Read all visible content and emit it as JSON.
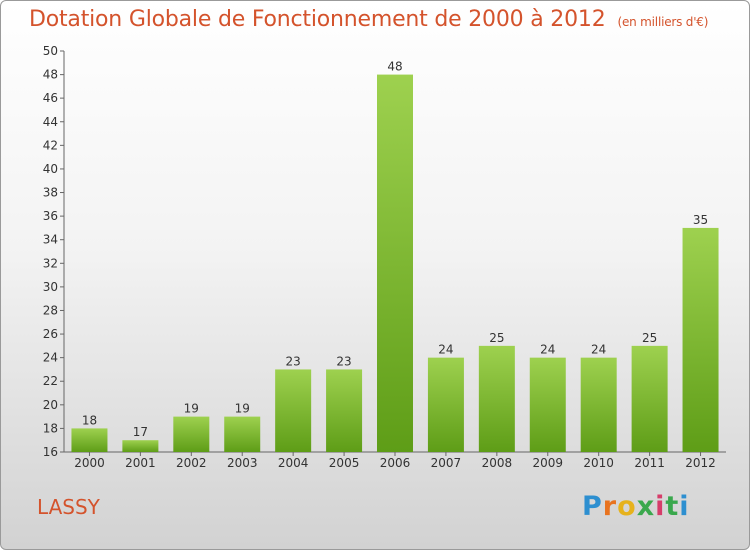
{
  "header": {
    "title": "Dotation Globale de Fonctionnement de 2000 à 2012",
    "unit": "(en milliers d'€)"
  },
  "footer": {
    "city": "LASSY",
    "logo": "Proxiti"
  },
  "colors": {
    "title": "#d4532c",
    "bar_top": "#9ed14f",
    "bar_bottom": "#5e9d17"
  },
  "chart_data": {
    "type": "bar",
    "title": "Dotation Globale de Fonctionnement de 2000 à 2012",
    "subtitle": "(en milliers d'€)",
    "xlabel": "",
    "ylabel": "",
    "categories": [
      "2000",
      "2001",
      "2002",
      "2003",
      "2004",
      "2005",
      "2006",
      "2007",
      "2008",
      "2009",
      "2010",
      "2011",
      "2012"
    ],
    "values": [
      18,
      17,
      19,
      19,
      23,
      23,
      48,
      24,
      25,
      24,
      24,
      25,
      35
    ],
    "ylim": [
      16,
      50
    ],
    "yticks": [
      16,
      18,
      20,
      22,
      24,
      26,
      28,
      30,
      32,
      34,
      36,
      38,
      40,
      42,
      44,
      46,
      48,
      50
    ],
    "grid": false,
    "legend": "none",
    "data_labels": true
  }
}
